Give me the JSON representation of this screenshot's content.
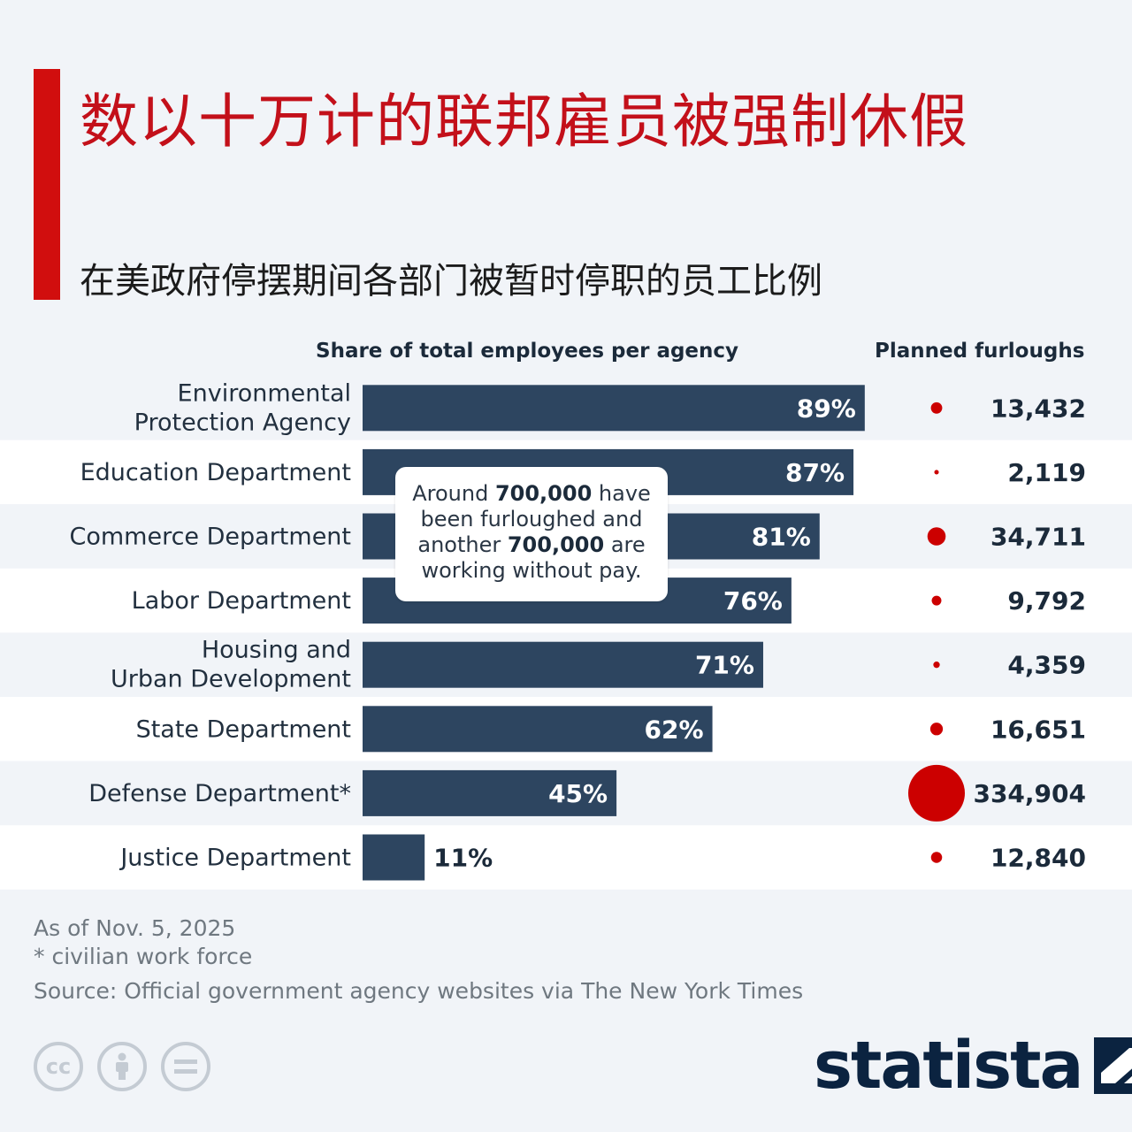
{
  "title": "数以十万计的联邦雇员被强制休假",
  "subtitle": "在美政府停摆期间各部门被暂时停职的员工比例",
  "headers": {
    "share": "Share of total employees per agency",
    "planned": "Planned furloughs"
  },
  "callout": {
    "t1": "Around",
    "b1": "700,000",
    "t2": "have been furloughed and another",
    "b2": "700,000",
    "t3": "are working without pay."
  },
  "chart_data": {
    "type": "bar",
    "orientation": "horizontal",
    "categories": [
      [
        "Environmental",
        "Protection Agency"
      ],
      [
        "Education Department"
      ],
      [
        "Commerce Department"
      ],
      [
        "Labor Department"
      ],
      [
        "Housing and",
        "Urban Development"
      ],
      [
        "State Department"
      ],
      [
        "Defense Department*"
      ],
      [
        "Justice Department"
      ]
    ],
    "series": [
      {
        "name": "Share of total employees per agency",
        "values": [
          89,
          87,
          81,
          76,
          71,
          62,
          45,
          11
        ],
        "labels": [
          "89%",
          "87%",
          "81%",
          "76%",
          "71%",
          "62%",
          "45%",
          "11%"
        ]
      },
      {
        "name": "Planned furloughs",
        "values": [
          13432,
          2119,
          34711,
          9792,
          4359,
          16651,
          334904,
          12840
        ],
        "labels": [
          "13,432",
          "2,119",
          "34,711",
          "9,792",
          "4,359",
          "16,651",
          "334,904",
          "12,840"
        ]
      }
    ],
    "xlim": [
      0,
      100
    ],
    "bar_color": "#2d4560",
    "bubble_color": "#cc0000"
  },
  "notes": {
    "date": "As of Nov. 5, 2025",
    "footnote": "* civilian work force",
    "source": "Source: Official government agency websites via The New York Times"
  },
  "logo": "statista",
  "license_icons": [
    "cc-icon",
    "attribution-icon",
    "no-derivatives-icon"
  ]
}
